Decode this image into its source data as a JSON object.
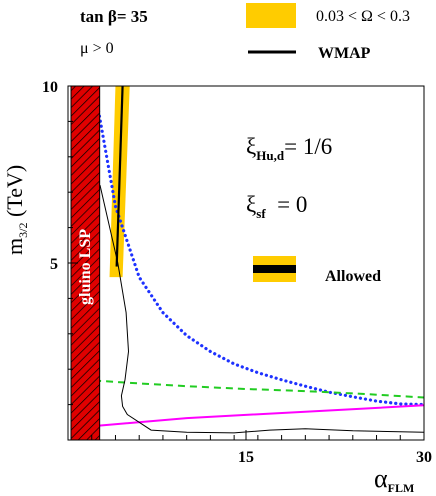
{
  "chart_data": {
    "type": "line",
    "title": "",
    "header": {
      "tanbeta": "tan β= 35",
      "mu": "μ > 0"
    },
    "legend": [
      {
        "label": "0.03 < Ω < 0.3",
        "color": "#ffcc00",
        "kind": "band"
      },
      {
        "label": "WMAP",
        "color": "#000000",
        "kind": "line"
      }
    ],
    "xlabel": {
      "main": "α",
      "sub": "FLM"
    },
    "ylabel": {
      "main": "m",
      "sub": "3/2",
      "unit": " (TeV)"
    },
    "xlim": [
      0,
      30
    ],
    "ylim": [
      0,
      10
    ],
    "xticks": [
      15,
      30
    ],
    "yticks": [
      5,
      10
    ],
    "annotations": {
      "xi_hu": {
        "sym": "ξ",
        "sub": "Hu,d",
        "rest": "= 1/6"
      },
      "xi_sf": {
        "sym": "ξ",
        "sub": "sf",
        "rest": "  = 0"
      },
      "allowed": "Allowed",
      "gluino": "gluino LSP"
    },
    "excluded_region": {
      "label": "gluino LSP",
      "x": [
        0,
        2.5
      ],
      "color": "#e00000"
    },
    "omega_band": {
      "color": "#ffcc00",
      "points": [
        [
          3.5,
          4.6
        ],
        [
          4.6,
          4.6
        ],
        [
          5.2,
          10
        ],
        [
          4.0,
          10
        ]
      ]
    },
    "wmap_line": {
      "color": "#000000",
      "points": [
        [
          4.1,
          4.9
        ],
        [
          4.6,
          10
        ]
      ]
    },
    "series": [
      {
        "style": "dotted",
        "color": "#1e32ff",
        "points": [
          [
            2.2,
            10
          ],
          [
            4,
            6.6
          ],
          [
            6,
            4.6
          ],
          [
            8,
            3.6
          ],
          [
            10,
            2.95
          ],
          [
            12,
            2.5
          ],
          [
            14,
            2.15
          ],
          [
            16,
            1.9
          ],
          [
            18,
            1.7
          ],
          [
            20,
            1.52
          ],
          [
            22,
            1.35
          ],
          [
            24,
            1.22
          ],
          [
            26,
            1.1
          ],
          [
            28,
            1.02
          ],
          [
            30,
            1.0
          ]
        ]
      },
      {
        "style": "dashed",
        "color": "#22cc22",
        "points": [
          [
            2.2,
            1.68
          ],
          [
            5,
            1.62
          ],
          [
            10,
            1.52
          ],
          [
            15,
            1.44
          ],
          [
            20,
            1.38
          ],
          [
            25,
            1.3
          ],
          [
            30,
            1.2
          ]
        ]
      },
      {
        "style": "solid",
        "color": "#ff00ff",
        "points": [
          [
            2.5,
            0.4
          ],
          [
            10,
            0.62
          ],
          [
            20,
            0.8
          ],
          [
            30,
            0.98
          ]
        ]
      },
      {
        "style": "solid",
        "color": "#000000",
        "width": 1,
        "points": [
          [
            2.7,
            7.2
          ],
          [
            4.2,
            5.0
          ],
          [
            4.9,
            3.6
          ],
          [
            5.1,
            2.5
          ],
          [
            4.8,
            1.7
          ],
          [
            4.5,
            1.25
          ],
          [
            4.6,
            0.95
          ],
          [
            5.0,
            0.72
          ],
          [
            7,
            0.28
          ],
          [
            10,
            0.22
          ],
          [
            14,
            0.2
          ],
          [
            17,
            0.28
          ],
          [
            20,
            0.32
          ],
          [
            24,
            0.26
          ],
          [
            30,
            0.22
          ]
        ]
      }
    ]
  }
}
